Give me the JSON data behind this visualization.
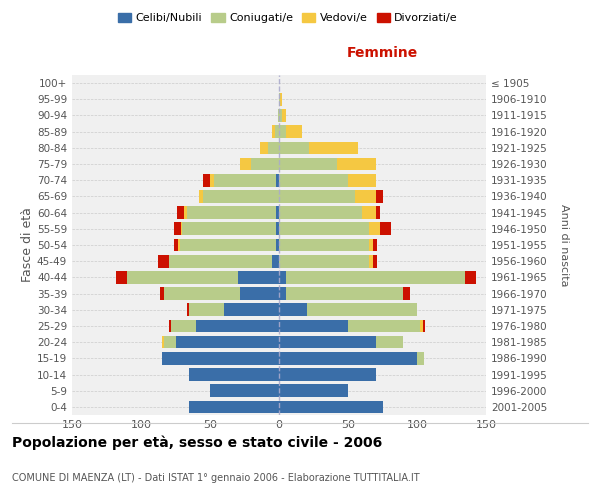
{
  "age_groups": [
    "0-4",
    "5-9",
    "10-14",
    "15-19",
    "20-24",
    "25-29",
    "30-34",
    "35-39",
    "40-44",
    "45-49",
    "50-54",
    "55-59",
    "60-64",
    "65-69",
    "70-74",
    "75-79",
    "80-84",
    "85-89",
    "90-94",
    "95-99",
    "100+"
  ],
  "birth_years": [
    "2001-2005",
    "1996-2000",
    "1991-1995",
    "1986-1990",
    "1981-1985",
    "1976-1980",
    "1971-1975",
    "1966-1970",
    "1961-1965",
    "1956-1960",
    "1951-1955",
    "1946-1950",
    "1941-1945",
    "1936-1940",
    "1931-1935",
    "1926-1930",
    "1921-1925",
    "1916-1920",
    "1911-1915",
    "1906-1910",
    "≤ 1905"
  ],
  "male_celibi": [
    65,
    50,
    65,
    85,
    75,
    60,
    40,
    28,
    30,
    5,
    2,
    2,
    2,
    0,
    2,
    0,
    0,
    0,
    0,
    0,
    0
  ],
  "male_coniugati": [
    0,
    0,
    0,
    0,
    8,
    18,
    25,
    55,
    80,
    75,
    70,
    68,
    65,
    55,
    45,
    20,
    8,
    3,
    1,
    0,
    0
  ],
  "male_vedovi": [
    0,
    0,
    0,
    0,
    2,
    0,
    0,
    0,
    0,
    0,
    1,
    1,
    2,
    3,
    3,
    8,
    6,
    2,
    0,
    0,
    0
  ],
  "male_divorziati": [
    0,
    0,
    0,
    0,
    0,
    2,
    2,
    3,
    8,
    8,
    3,
    5,
    5,
    0,
    5,
    0,
    0,
    0,
    0,
    0,
    0
  ],
  "female_nubili": [
    75,
    50,
    70,
    100,
    70,
    50,
    20,
    5,
    5,
    0,
    0,
    0,
    0,
    0,
    0,
    0,
    0,
    0,
    0,
    0,
    0
  ],
  "female_coniugate": [
    0,
    0,
    0,
    5,
    20,
    52,
    80,
    85,
    130,
    65,
    65,
    65,
    60,
    55,
    50,
    42,
    22,
    5,
    2,
    1,
    0
  ],
  "female_vedove": [
    0,
    0,
    0,
    0,
    0,
    2,
    0,
    0,
    0,
    3,
    3,
    8,
    10,
    15,
    20,
    28,
    35,
    12,
    3,
    1,
    0
  ],
  "female_divorziate": [
    0,
    0,
    0,
    0,
    0,
    2,
    0,
    5,
    8,
    3,
    3,
    8,
    3,
    5,
    0,
    0,
    0,
    0,
    0,
    0,
    0
  ],
  "color_celibi": "#3a6ea8",
  "color_coniugati": "#b8cc8a",
  "color_vedovi": "#f5c842",
  "color_divorziati": "#cc1100",
  "xlim": 150,
  "title": "Popolazione per età, sesso e stato civile - 2006",
  "subtitle": "COMUNE DI MAENZA (LT) - Dati ISTAT 1° gennaio 2006 - Elaborazione TUTTITALIA.IT",
  "ylabel_left": "Fasce di età",
  "ylabel_right": "Anni di nascita",
  "label_femmine": "Femmine",
  "legend_labels": [
    "Celibi/Nubili",
    "Coniugati/e",
    "Vedovi/e",
    "Divorziati/e"
  ],
  "background_color": "#ffffff",
  "plot_bg": "#f0f0f0",
  "grid_color": "#cccccc"
}
